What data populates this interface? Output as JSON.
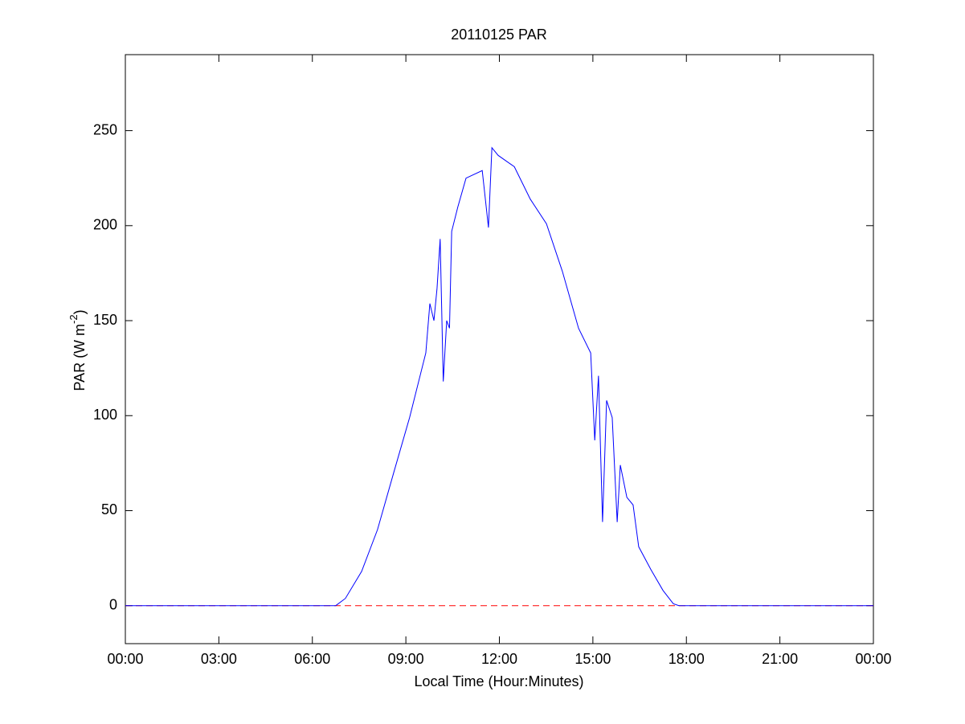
{
  "chart_data": {
    "type": "line",
    "title": "20110125 PAR",
    "xlabel": "Local Time (Hour:Minutes)",
    "ylabel": {
      "text": "PAR (W m",
      "sup": "-2",
      "suffix": ")"
    },
    "xlim": [
      0,
      24
    ],
    "ylim": [
      -20,
      290
    ],
    "xticks": [
      {
        "value": 0,
        "label": "00:00"
      },
      {
        "value": 3,
        "label": "03:00"
      },
      {
        "value": 6,
        "label": "06:00"
      },
      {
        "value": 9,
        "label": "09:00"
      },
      {
        "value": 12,
        "label": "12:00"
      },
      {
        "value": 15,
        "label": "15:00"
      },
      {
        "value": 18,
        "label": "18:00"
      },
      {
        "value": 21,
        "label": "21:00"
      },
      {
        "value": 24,
        "label": "00:00"
      }
    ],
    "yticks": [
      0,
      50,
      100,
      150,
      200,
      250
    ],
    "grid": false,
    "reference_line": {
      "value": 0,
      "color": "#ff0000",
      "style": "dashed"
    },
    "x": [
      0,
      6.75,
      7.06,
      7.58,
      8.09,
      8.61,
      9.12,
      9.64,
      9.77,
      9.9,
      10.0,
      10.1,
      10.2,
      10.31,
      10.4,
      10.47,
      10.67,
      10.93,
      11.45,
      11.65,
      11.76,
      11.96,
      12.48,
      12.99,
      13.51,
      14.02,
      14.54,
      14.93,
      15.06,
      15.18,
      15.31,
      15.44,
      15.62,
      15.78,
      15.88,
      16.09,
      16.29,
      16.47,
      16.86,
      17.25,
      17.58,
      17.76,
      24
    ],
    "series": [
      {
        "name": "PAR",
        "color": "#0000ff",
        "values": [
          0,
          0,
          3.8,
          18,
          40,
          70,
          99,
          133,
          159,
          150,
          167,
          193,
          118,
          150,
          146,
          197,
          210,
          225,
          229,
          199,
          241,
          237,
          231,
          214,
          201,
          176,
          146,
          133,
          87,
          121,
          44,
          108,
          99,
          44,
          74,
          57,
          53,
          31,
          19,
          8,
          1,
          0,
          0
        ]
      }
    ]
  }
}
